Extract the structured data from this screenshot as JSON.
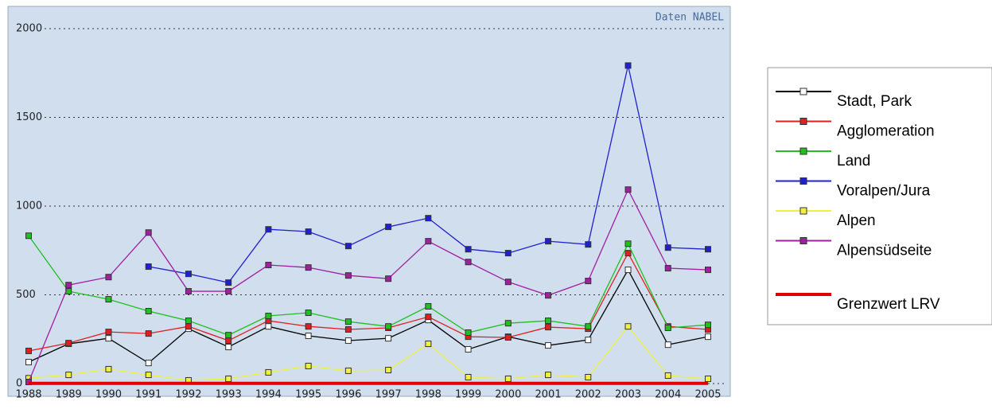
{
  "chart_data": {
    "type": "line",
    "annotation": "Daten NABEL",
    "categories": [
      "1988",
      "1989",
      "1990",
      "1991",
      "1992",
      "1993",
      "1994",
      "1995",
      "1996",
      "1997",
      "1998",
      "1999",
      "2000",
      "2001",
      "2002",
      "2003",
      "2004",
      "2005"
    ],
    "ylim": [
      0,
      2000
    ],
    "yticks": [
      0,
      500,
      1000,
      1500,
      2000
    ],
    "grid": true,
    "series": [
      {
        "name": "Stadt, Park",
        "color": "#000000",
        "values": [
          121,
          224,
          255,
          116,
          309,
          206,
          322,
          269,
          242,
          255,
          358,
          193,
          264,
          215,
          246,
          641,
          219,
          264
        ]
      },
      {
        "name": "Agglomeration",
        "color": "#e02020",
        "values": [
          184,
          228,
          291,
          282,
          322,
          242,
          354,
          322,
          305,
          314,
          376,
          264,
          260,
          318,
          309,
          735,
          322,
          305
        ]
      },
      {
        "name": "Land",
        "color": "#20c020",
        "values": [
          833,
          520,
          475,
          408,
          354,
          273,
          381,
          399,
          349,
          322,
          435,
          287,
          340,
          354,
          322,
          788,
          314,
          331
        ]
      },
      {
        "name": "Voralpen/Jura",
        "color": "#2020d0",
        "values": [
          null,
          null,
          null,
          659,
          618,
          569,
          869,
          856,
          775,
          883,
          932,
          757,
          735,
          802,
          784,
          1792,
          766,
          757
        ]
      },
      {
        "name": "Alpen",
        "color": "#f0f040",
        "values": [
          30,
          49,
          81,
          49,
          18,
          27,
          63,
          99,
          72,
          76,
          224,
          36,
          27,
          49,
          36,
          322,
          45,
          27
        ]
      },
      {
        "name": "Alpensüdseite",
        "color": "#a020a0",
        "values": [
          9,
          555,
          600,
          851,
          520,
          520,
          668,
          654,
          609,
          591,
          802,
          685,
          573,
          497,
          578,
          1093,
          650,
          641
        ]
      },
      {
        "name": "Grenzwert LRV",
        "color": "#e00000",
        "values": [
          1,
          1,
          1,
          1,
          1,
          1,
          1,
          1,
          1,
          1,
          1,
          1,
          1,
          1,
          1,
          1,
          1,
          1
        ]
      }
    ]
  }
}
